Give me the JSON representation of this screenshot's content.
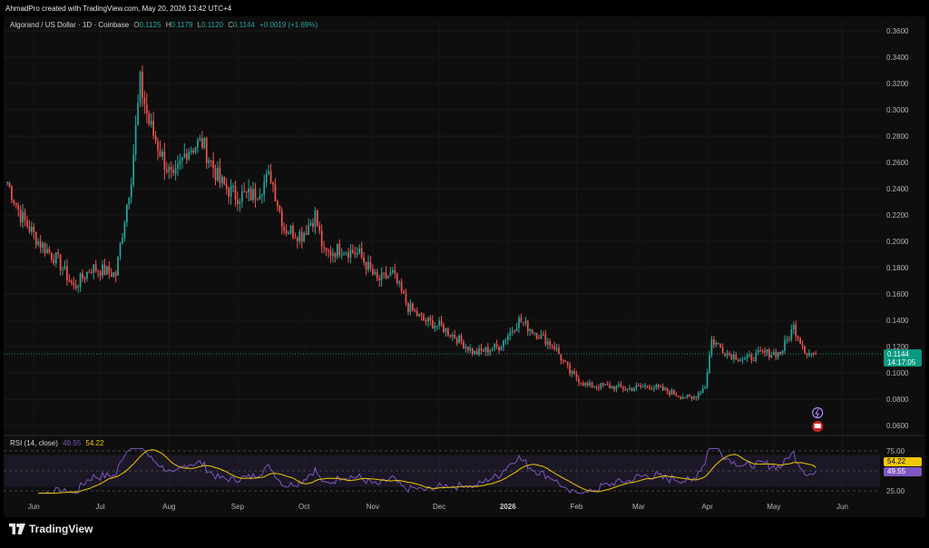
{
  "header": {
    "created_by": "AhmadPro created with TradingView.com, May 20, 2026 13:42 UTC+4"
  },
  "legend": {
    "symbol": "Algorand / US Dollar · 1D · Coinbase",
    "open_k": "O",
    "open_v": "0.1125",
    "high_k": "H",
    "high_v": "0.1179",
    "low_k": "L",
    "low_v": "0.1120",
    "close_k": "C",
    "close_v": "0.1144",
    "change": "+0.0019 (+1.69%)"
  },
  "rsi_legend": {
    "name": "RSI (14, close)",
    "rsi": "49.55",
    "ma": "54.22"
  },
  "price_tag": {
    "price": "0.1144",
    "countdown": "14:17:05"
  },
  "rsi_tags": {
    "ma": "54.22",
    "rsi": "49.55"
  },
  "footer": {
    "brand": "TradingView"
  },
  "colors": {
    "up": "#26a69a",
    "down": "#ef5350",
    "rsi": "#7e57c2",
    "rsi_ma": "#f0c800",
    "tag": "#089981"
  },
  "icons": [
    "flash-event-icon",
    "flag-event-icon"
  ],
  "chart_data": [
    {
      "type": "candlestick",
      "title": "Algorand / US Dollar · 1D · Coinbase",
      "ylim": [
        0.05,
        0.37
      ],
      "y_ticks": [
        "0.3600",
        "0.3400",
        "0.3200",
        "0.3000",
        "0.2800",
        "0.2600",
        "0.2400",
        "0.2200",
        "0.2000",
        "0.1800",
        "0.1600",
        "0.1400",
        "0.1200",
        "0.1000",
        "0.0800",
        "0.0600"
      ],
      "x_ticks": [
        "Jun",
        "Jul",
        "Aug",
        "Sep",
        "Oct",
        "Nov",
        "Dec",
        "2026",
        "Feb",
        "Mar",
        "Apr",
        "May",
        "Jun"
      ],
      "x_range": [
        "2025-05-20",
        "2026-06-18"
      ],
      "series_anchors": [
        [
          "2025-05-20",
          0.245
        ],
        [
          "2025-05-26",
          0.22
        ],
        [
          "2025-06-03",
          0.2
        ],
        [
          "2025-06-12",
          0.185
        ],
        [
          "2025-06-19",
          0.165
        ],
        [
          "2025-06-27",
          0.18
        ],
        [
          "2025-07-08",
          0.175
        ],
        [
          "2025-07-15",
          0.25
        ],
        [
          "2025-07-19",
          0.32
        ],
        [
          "2025-07-23",
          0.29
        ],
        [
          "2025-07-30",
          0.26
        ],
        [
          "2025-08-03",
          0.245
        ],
        [
          "2025-08-09",
          0.27
        ],
        [
          "2025-08-16",
          0.275
        ],
        [
          "2025-08-24",
          0.245
        ],
        [
          "2025-08-31",
          0.235
        ],
        [
          "2025-09-08",
          0.235
        ],
        [
          "2025-09-16",
          0.25
        ],
        [
          "2025-09-22",
          0.21
        ],
        [
          "2025-09-30",
          0.205
        ],
        [
          "2025-10-06",
          0.22
        ],
        [
          "2025-10-10",
          0.19
        ],
        [
          "2025-10-18",
          0.195
        ],
        [
          "2025-10-26",
          0.19
        ],
        [
          "2025-11-03",
          0.17
        ],
        [
          "2025-11-10",
          0.175
        ],
        [
          "2025-11-17",
          0.15
        ],
        [
          "2025-11-24",
          0.14
        ],
        [
          "2025-12-02",
          0.135
        ],
        [
          "2025-12-10",
          0.125
        ],
        [
          "2025-12-17",
          0.115
        ],
        [
          "2025-12-28",
          0.12
        ],
        [
          "2026-01-06",
          0.14
        ],
        [
          "2026-01-14",
          0.13
        ],
        [
          "2026-01-22",
          0.12
        ],
        [
          "2026-01-29",
          0.1
        ],
        [
          "2026-02-06",
          0.09
        ],
        [
          "2026-02-14",
          0.09
        ],
        [
          "2026-02-24",
          0.088
        ],
        [
          "2026-03-06",
          0.09
        ],
        [
          "2026-03-16",
          0.085
        ],
        [
          "2026-03-25",
          0.08
        ],
        [
          "2026-03-31",
          0.09
        ],
        [
          "2026-04-03",
          0.125
        ],
        [
          "2026-04-10",
          0.115
        ],
        [
          "2026-04-18",
          0.11
        ],
        [
          "2026-04-26",
          0.115
        ],
        [
          "2026-05-04",
          0.115
        ],
        [
          "2026-05-10",
          0.135
        ],
        [
          "2026-05-16",
          0.115
        ],
        [
          "2026-05-20",
          0.1144
        ]
      ],
      "last_close": 0.1144
    },
    {
      "type": "line",
      "title": "RSI (14, close)",
      "ylim": [
        20,
        80
      ],
      "y_ticks": [
        "75.00",
        "25.00"
      ],
      "bands": [
        30,
        70
      ],
      "series": [
        {
          "name": "RSI",
          "color": "#7e57c2",
          "last": 49.55
        },
        {
          "name": "MA",
          "color": "#f0c800",
          "last": 54.22
        }
      ]
    }
  ]
}
